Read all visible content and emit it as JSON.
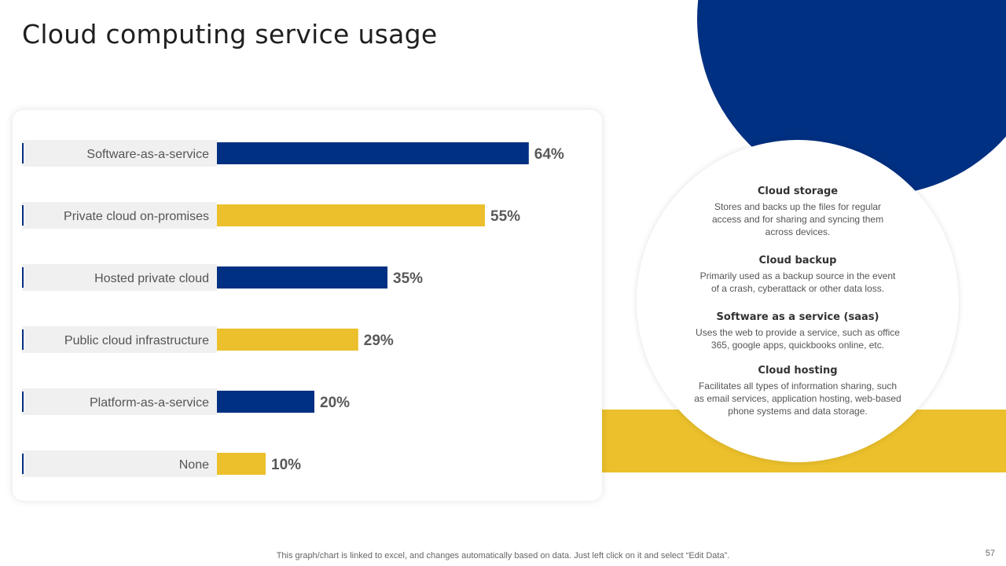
{
  "slide": {
    "title": "Cloud computing service usage",
    "footnote": "This graph/chart is linked to excel,  and changes automatically based on data. Just left click on it and select “Edit Data”.",
    "page_number": "57"
  },
  "colors": {
    "blue": "#003082",
    "yellow": "#ebc02c",
    "label_bg": "#f0f0f0"
  },
  "chart_data": {
    "type": "bar",
    "orientation": "horizontal",
    "categories": [
      "Software-as-a-service",
      "Private cloud on-promises",
      "Hosted private cloud",
      "Public cloud infrastructure",
      "Platform-as-a-service",
      "None"
    ],
    "values": [
      64,
      55,
      35,
      29,
      20,
      10
    ],
    "data_labels": [
      "64%",
      "55%",
      "35%",
      "29%",
      "20%",
      "10%"
    ],
    "bar_colors": [
      "#003082",
      "#ebc02c",
      "#003082",
      "#ebc02c",
      "#003082",
      "#ebc02c"
    ],
    "unit": "%",
    "xlim": [
      0,
      100
    ],
    "title": "",
    "xlabel": "",
    "ylabel": "",
    "grid": false,
    "legend": "none"
  },
  "info": [
    {
      "title": "Cloud storage",
      "lines": [
        "Stores and backs up the files for regular",
        "access and for sharing and syncing them",
        "across devices."
      ]
    },
    {
      "title": "Cloud backup",
      "lines": [
        "Primarily used as a backup source in the event",
        "of a crash, cyberattack or other data loss."
      ]
    },
    {
      "title": "Software as a service (saas)",
      "lines": [
        "Uses the web to provide  a service, such as office",
        "365, google apps, quickbooks online, etc."
      ]
    },
    {
      "title": "Cloud hosting",
      "lines": [
        "Facilitates all types of information  sharing, such",
        "as email services, application hosting, web-based",
        "phone systems and data storage."
      ]
    }
  ]
}
